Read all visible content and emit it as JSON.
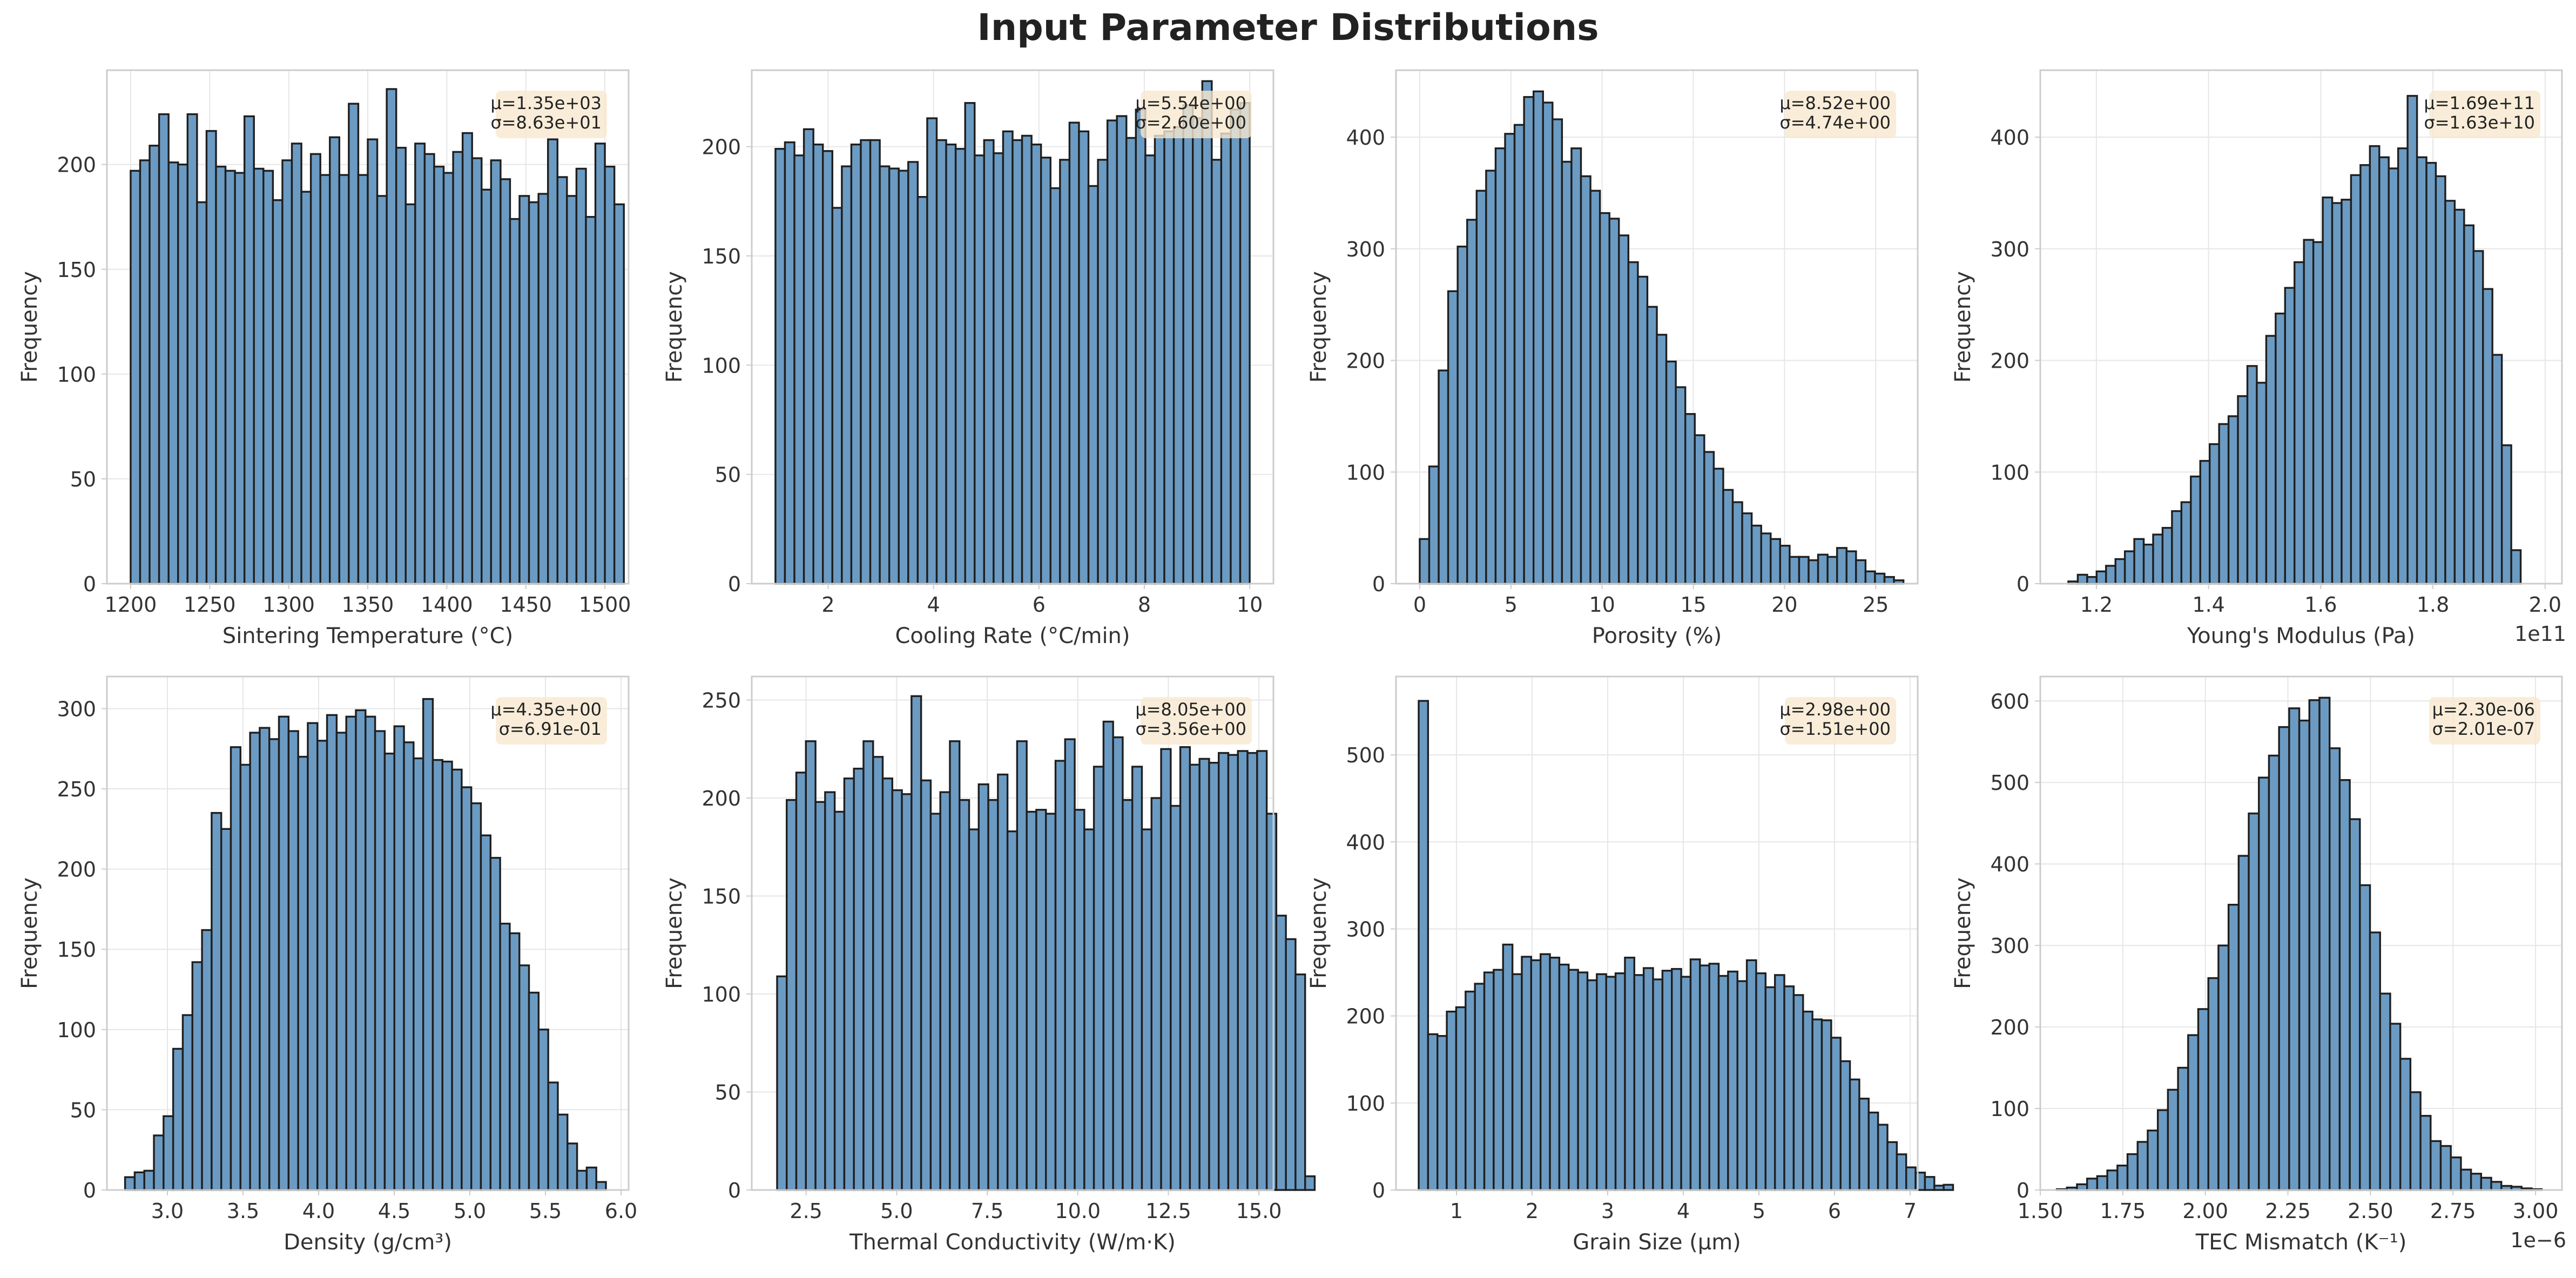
{
  "figure": {
    "title": "Input Parameter Distributions",
    "colors": {
      "bar_fill": "#6b9bc3",
      "bar_edge": "#1f1f1f",
      "grid": "#e6e6e6",
      "frame": "#cccccc",
      "text": "#333333",
      "stats_box": "#f7e9d0"
    }
  },
  "chart_data": [
    {
      "type": "bar",
      "xlabel": "Sintering Temperature (°C)",
      "ylabel": "Frequency",
      "xlim": [
        1185,
        1515
      ],
      "ylim": [
        0,
        245
      ],
      "xticks": [
        1200,
        1250,
        1300,
        1350,
        1400,
        1450,
        1500
      ],
      "xtick_labels": [
        "1200",
        "1250",
        "1300",
        "1350",
        "1400",
        "1450",
        "1500"
      ],
      "yticks": [
        0,
        50,
        100,
        150,
        200
      ],
      "bin_start": 1200,
      "bin_width": 6,
      "values": [
        197,
        202,
        209,
        224,
        201,
        200,
        224,
        182,
        216,
        199,
        197,
        196,
        223,
        198,
        197,
        183,
        202,
        210,
        187,
        205,
        195,
        213,
        195,
        229,
        195,
        212,
        185,
        236,
        208,
        181,
        210,
        205,
        199,
        196,
        206,
        215,
        203,
        188,
        202,
        193,
        174,
        185,
        182,
        186,
        212,
        194,
        185,
        198,
        175,
        210,
        199,
        181
      ],
      "stats": [
        "μ=1.35e+03",
        "σ=8.63e+01"
      ],
      "grid": true,
      "stats_position": "top-right"
    },
    {
      "type": "bar",
      "xlabel": "Cooling Rate (°C/min)",
      "ylabel": "Frequency",
      "xlim": [
        0.55,
        10.45
      ],
      "ylim": [
        0,
        235
      ],
      "xticks": [
        2,
        4,
        6,
        8,
        10
      ],
      "xtick_labels": [
        "2",
        "4",
        "6",
        "8",
        "10"
      ],
      "yticks": [
        0,
        50,
        100,
        150,
        200
      ],
      "bin_start": 1.0,
      "bin_width": 0.18,
      "values": [
        199,
        202,
        196,
        208,
        201,
        198,
        172,
        191,
        201,
        203,
        203,
        191,
        190,
        189,
        193,
        177,
        213,
        203,
        201,
        199,
        220,
        196,
        203,
        197,
        207,
        203,
        205,
        201,
        195,
        181,
        194,
        211,
        207,
        182,
        194,
        212,
        214,
        204,
        217,
        196,
        205,
        207,
        209,
        219,
        213,
        230,
        194,
        206,
        217,
        220
      ],
      "stats": [
        "μ=5.54e+00",
        "σ=2.60e+00"
      ],
      "grid": true,
      "stats_position": "top-right"
    },
    {
      "type": "bar",
      "xlabel": "Porosity (%)",
      "ylabel": "Frequency",
      "xlim": [
        -1.3,
        27.3
      ],
      "ylim": [
        0,
        460
      ],
      "xticks": [
        0,
        5,
        10,
        15,
        20,
        25
      ],
      "xtick_labels": [
        "0",
        "5",
        "10",
        "15",
        "20",
        "25"
      ],
      "yticks": [
        0,
        100,
        200,
        300,
        400
      ],
      "bin_start": 0.0,
      "bin_width": 0.52,
      "values": [
        40,
        105,
        191,
        262,
        302,
        326,
        352,
        370,
        390,
        403,
        411,
        436,
        441,
        431,
        416,
        378,
        390,
        365,
        352,
        332,
        327,
        312,
        288,
        275,
        248,
        223,
        199,
        176,
        152,
        133,
        118,
        103,
        84,
        73,
        63,
        52,
        45,
        40,
        34,
        24,
        24,
        21,
        26,
        24,
        32,
        29,
        21,
        11,
        9,
        6,
        3
      ],
      "stats": [
        "μ=8.52e+00",
        "σ=4.74e+00"
      ],
      "grid": true,
      "stats_position": "top-right"
    },
    {
      "type": "bar",
      "xlabel": "Young's Modulus (Pa)",
      "ylabel": "Frequency",
      "xlim": [
        1.1,
        2.03
      ],
      "ylim": [
        0,
        460
      ],
      "xticks": [
        1.2,
        1.4,
        1.6,
        1.8,
        2.0
      ],
      "xtick_labels": [
        "1.2",
        "1.4",
        "1.6",
        "1.8",
        "2.0"
      ],
      "yticks": [
        0,
        100,
        200,
        300,
        400
      ],
      "offset_label": "1e11",
      "bin_start": 1.15,
      "bin_width": 0.0168,
      "values": [
        2,
        8,
        6,
        11,
        16,
        22,
        29,
        40,
        35,
        44,
        50,
        65,
        73,
        96,
        110,
        125,
        143,
        150,
        168,
        195,
        180,
        222,
        242,
        265,
        288,
        308,
        306,
        346,
        341,
        344,
        366,
        375,
        392,
        382,
        372,
        390,
        437,
        382,
        377,
        365,
        343,
        335,
        321,
        298,
        264,
        205,
        124,
        30
      ],
      "stats": [
        "μ=1.69e+11",
        "σ=1.63e+10"
      ],
      "grid": true,
      "stats_position": "top-right"
    },
    {
      "type": "bar",
      "xlabel": "Density (g/cm³)",
      "ylabel": "Frequency",
      "xlim": [
        2.6,
        6.05
      ],
      "ylim": [
        0,
        320
      ],
      "xticks": [
        3.0,
        3.5,
        4.0,
        4.5,
        5.0,
        5.5,
        6.0
      ],
      "xtick_labels": [
        "3.0",
        "3.5",
        "4.0",
        "4.5",
        "5.0",
        "5.5",
        "6.0"
      ],
      "yticks": [
        0,
        50,
        100,
        150,
        200,
        250,
        300
      ],
      "bin_start": 2.72,
      "bin_width": 0.0636,
      "values": [
        8,
        11,
        12,
        34,
        46,
        88,
        109,
        142,
        162,
        235,
        225,
        276,
        265,
        285,
        288,
        281,
        295,
        286,
        270,
        291,
        280,
        296,
        285,
        295,
        299,
        295,
        286,
        272,
        289,
        279,
        269,
        306,
        268,
        267,
        262,
        251,
        241,
        221,
        207,
        166,
        160,
        140,
        123,
        100,
        67,
        47,
        29,
        12,
        14,
        5
      ],
      "stats": [
        "μ=4.35e+00",
        "σ=6.91e-01"
      ],
      "grid": true,
      "stats_position": "top-right"
    },
    {
      "type": "bar",
      "xlabel": "Thermal Conductivity (W/m·K)",
      "ylabel": "Frequency",
      "xlim": [
        1.0,
        15.4
      ],
      "ylim": [
        0,
        262
      ],
      "xticks": [
        2.5,
        5.0,
        7.5,
        10.0,
        12.5,
        15.0
      ],
      "xtick_labels": [
        "2.5",
        "5.0",
        "7.5",
        "10.0",
        "12.5",
        "15.0"
      ],
      "yticks": [
        0,
        50,
        100,
        150,
        200,
        250
      ],
      "bin_start": 1.7,
      "bin_width": 0.265,
      "values": [
        109,
        199,
        213,
        229,
        198,
        203,
        193,
        210,
        215,
        229,
        221,
        210,
        204,
        202,
        252,
        209,
        192,
        203,
        229,
        199,
        184,
        207,
        199,
        212,
        183,
        229,
        193,
        194,
        192,
        219,
        230,
        194,
        184,
        216,
        239,
        231,
        199,
        216,
        184,
        200,
        225,
        196,
        226,
        217,
        220,
        218,
        223,
        222,
        224,
        223,
        224,
        192,
        140,
        128,
        110,
        7
      ],
      "stats": [
        "μ=8.05e+00",
        "σ=3.56e+00"
      ],
      "grid": true,
      "stats_position": "top-right"
    },
    {
      "type": "bar",
      "xlabel": "Grain Size (μm)",
      "ylabel": "Frequency",
      "xlim": [
        0.2,
        7.1
      ],
      "ylim": [
        0,
        590
      ],
      "xticks": [
        1,
        2,
        3,
        4,
        5,
        6,
        7
      ],
      "xtick_labels": [
        "1",
        "2",
        "3",
        "4",
        "5",
        "6",
        "7"
      ],
      "yticks": [
        0,
        100,
        200,
        300,
        400,
        500
      ],
      "bin_start": 0.5,
      "bin_width": 0.124,
      "values": [
        562,
        179,
        177,
        205,
        210,
        228,
        237,
        250,
        253,
        282,
        248,
        268,
        264,
        271,
        267,
        259,
        253,
        250,
        241,
        248,
        245,
        249,
        267,
        247,
        255,
        242,
        252,
        254,
        245,
        265,
        258,
        260,
        246,
        251,
        240,
        264,
        249,
        233,
        247,
        234,
        224,
        205,
        196,
        195,
        175,
        148,
        127,
        105,
        89,
        75,
        55,
        41,
        26,
        20,
        15,
        5,
        6
      ],
      "stats": [
        "μ=2.98e+00",
        "σ=1.51e+00"
      ],
      "grid": true,
      "stats_position": "top-right"
    },
    {
      "type": "bar",
      "xlabel": "TEC Mismatch (K⁻¹)",
      "ylabel": "Frequency",
      "xlim": [
        1.5,
        3.08
      ],
      "ylim": [
        0,
        630
      ],
      "xticks": [
        1.5,
        1.75,
        2.0,
        2.25,
        2.5,
        2.75,
        3.0
      ],
      "xtick_labels": [
        "1.50",
        "1.75",
        "2.00",
        "2.25",
        "2.50",
        "2.75",
        "3.00"
      ],
      "yticks": [
        0,
        100,
        200,
        300,
        400,
        500,
        600
      ],
      "offset_label": "1e−6",
      "bin_start": 1.55,
      "bin_width": 0.0306,
      "values": [
        1,
        3,
        7,
        14,
        17,
        24,
        30,
        44,
        59,
        73,
        98,
        123,
        150,
        190,
        222,
        260,
        300,
        350,
        410,
        462,
        506,
        533,
        568,
        591,
        576,
        601,
        604,
        542,
        503,
        455,
        374,
        316,
        241,
        204,
        161,
        120,
        91,
        60,
        54,
        40,
        25,
        20,
        15,
        10,
        5,
        4,
        2,
        1
      ],
      "stats": [
        "μ=2.30e-06",
        "σ=2.01e-07"
      ],
      "grid": true,
      "stats_position": "top-right"
    }
  ]
}
